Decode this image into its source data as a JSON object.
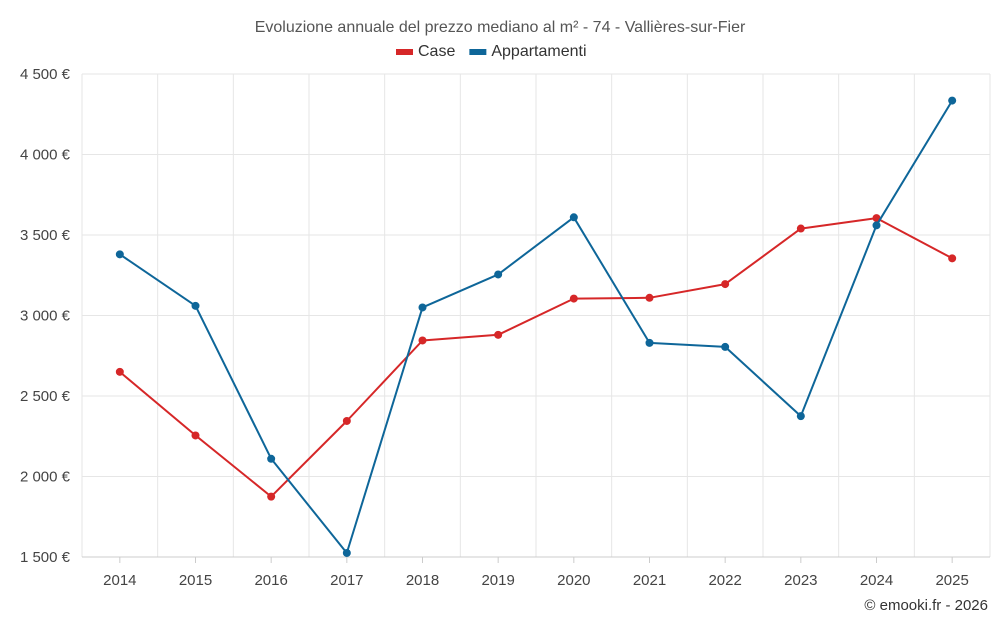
{
  "chart_data": {
    "type": "line",
    "title": "Evoluzione annuale del prezzo mediano al m² - 74 - Vallières-sur-Fier",
    "categories": [
      "2014",
      "2015",
      "2016",
      "2017",
      "2018",
      "2019",
      "2020",
      "2021",
      "2022",
      "2023",
      "2024",
      "2025"
    ],
    "series": [
      {
        "name": "Case",
        "color": "#d62728",
        "values": [
          2650,
          2255,
          1875,
          2345,
          2845,
          2880,
          3105,
          3110,
          3195,
          3540,
          3605,
          3355
        ]
      },
      {
        "name": "Appartamenti",
        "color": "#0e6699",
        "values": [
          3380,
          3060,
          2110,
          1525,
          3050,
          3255,
          3610,
          2830,
          2805,
          2375,
          3560,
          4335
        ]
      }
    ],
    "ylim": [
      1500,
      4500
    ],
    "yticks": [
      1500,
      2000,
      2500,
      3000,
      3500,
      4000,
      4500
    ],
    "ytick_labels": [
      "1 500 €",
      "2 000 €",
      "2 500 €",
      "3 000 €",
      "3 500 €",
      "4 000 €",
      "4 500 €"
    ],
    "xlabel": "",
    "ylabel": "",
    "grid": true,
    "legend": "top-center"
  },
  "credit": "© emooki.fr - 2026"
}
